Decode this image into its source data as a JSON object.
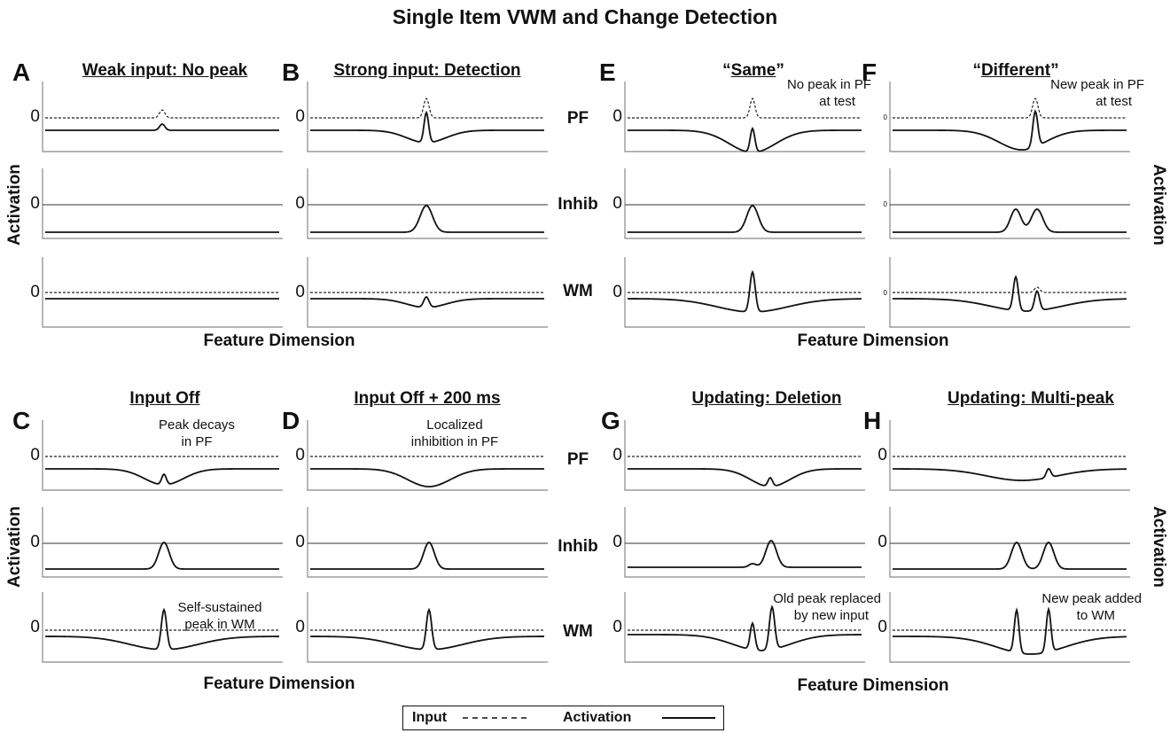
{
  "title": "Single Item VWM and Change Detection",
  "row_labels": [
    "PF",
    "Inhib",
    "WM"
  ],
  "zero_label": "0",
  "xlabel": "Feature Dimension",
  "ylabel": "Activation",
  "legend": {
    "input": "Input",
    "activation": "Activation"
  },
  "panels": [
    {
      "letter": "A",
      "title": "Weak input: No peak"
    },
    {
      "letter": "B",
      "title": "Strong input: Detection"
    },
    {
      "letter": "C",
      "title": "Input Off"
    },
    {
      "letter": "D",
      "title": "Input Off + 200 ms"
    },
    {
      "letter": "E",
      "title_open": "“",
      "title_main": "Same",
      "title_close": "”"
    },
    {
      "letter": "F",
      "title_open": "“",
      "title_main": "Different",
      "title_close": "”"
    },
    {
      "letter": "G",
      "title": "Updating: Deletion"
    },
    {
      "letter": "H",
      "title": "Updating: Multi-peak"
    }
  ],
  "annotations": {
    "c_pf_1": "Peak decays",
    "c_pf_2": "in PF",
    "c_wm_1": "Self-sustained",
    "c_wm_2": "peak in WM",
    "d_pf_1": "Localized",
    "d_pf_2": "inhibition in PF",
    "e_pf_1": "No peak in PF",
    "e_pf_2": "at test",
    "f_pf_1": "New peak in PF",
    "f_pf_2": "at test",
    "g_wm_1": "Old peak replaced",
    "g_wm_2": "by new input",
    "h_wm_1": "New peak added",
    "h_wm_2": "to WM"
  }
}
